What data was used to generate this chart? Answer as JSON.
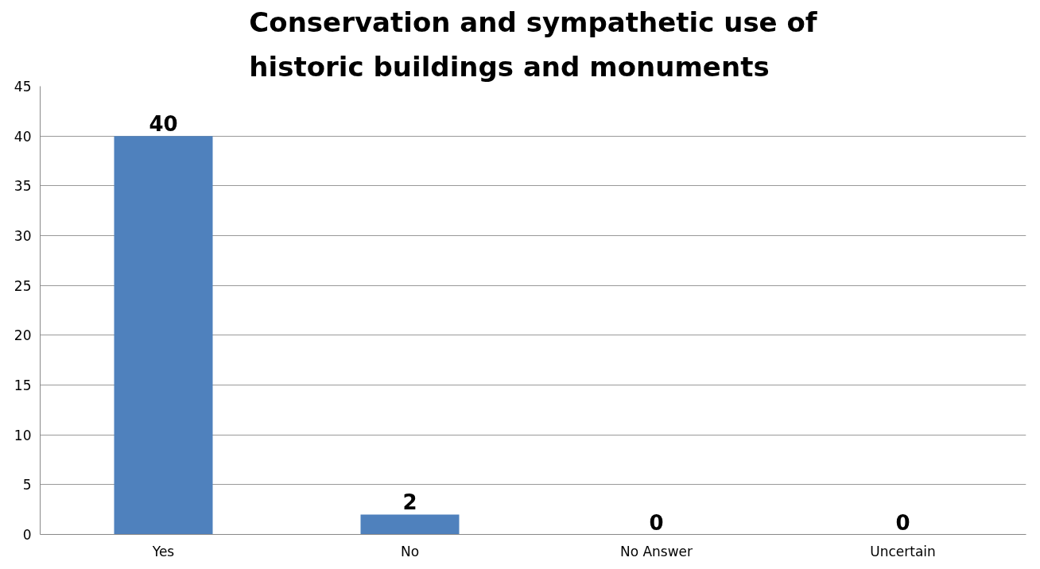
{
  "chart_data": {
    "type": "bar",
    "title": "Conservation and sympathetic use of historic buildings and monuments",
    "categories": [
      "Yes",
      "No",
      "No Answer",
      "Uncertain"
    ],
    "values": [
      40,
      2,
      0,
      0
    ],
    "color": "#4f81bd",
    "ylim": [
      0,
      45
    ],
    "yticks": [
      0,
      5,
      10,
      15,
      20,
      25,
      30,
      35,
      40,
      45
    ],
    "grid": "y",
    "data_labels": true
  }
}
